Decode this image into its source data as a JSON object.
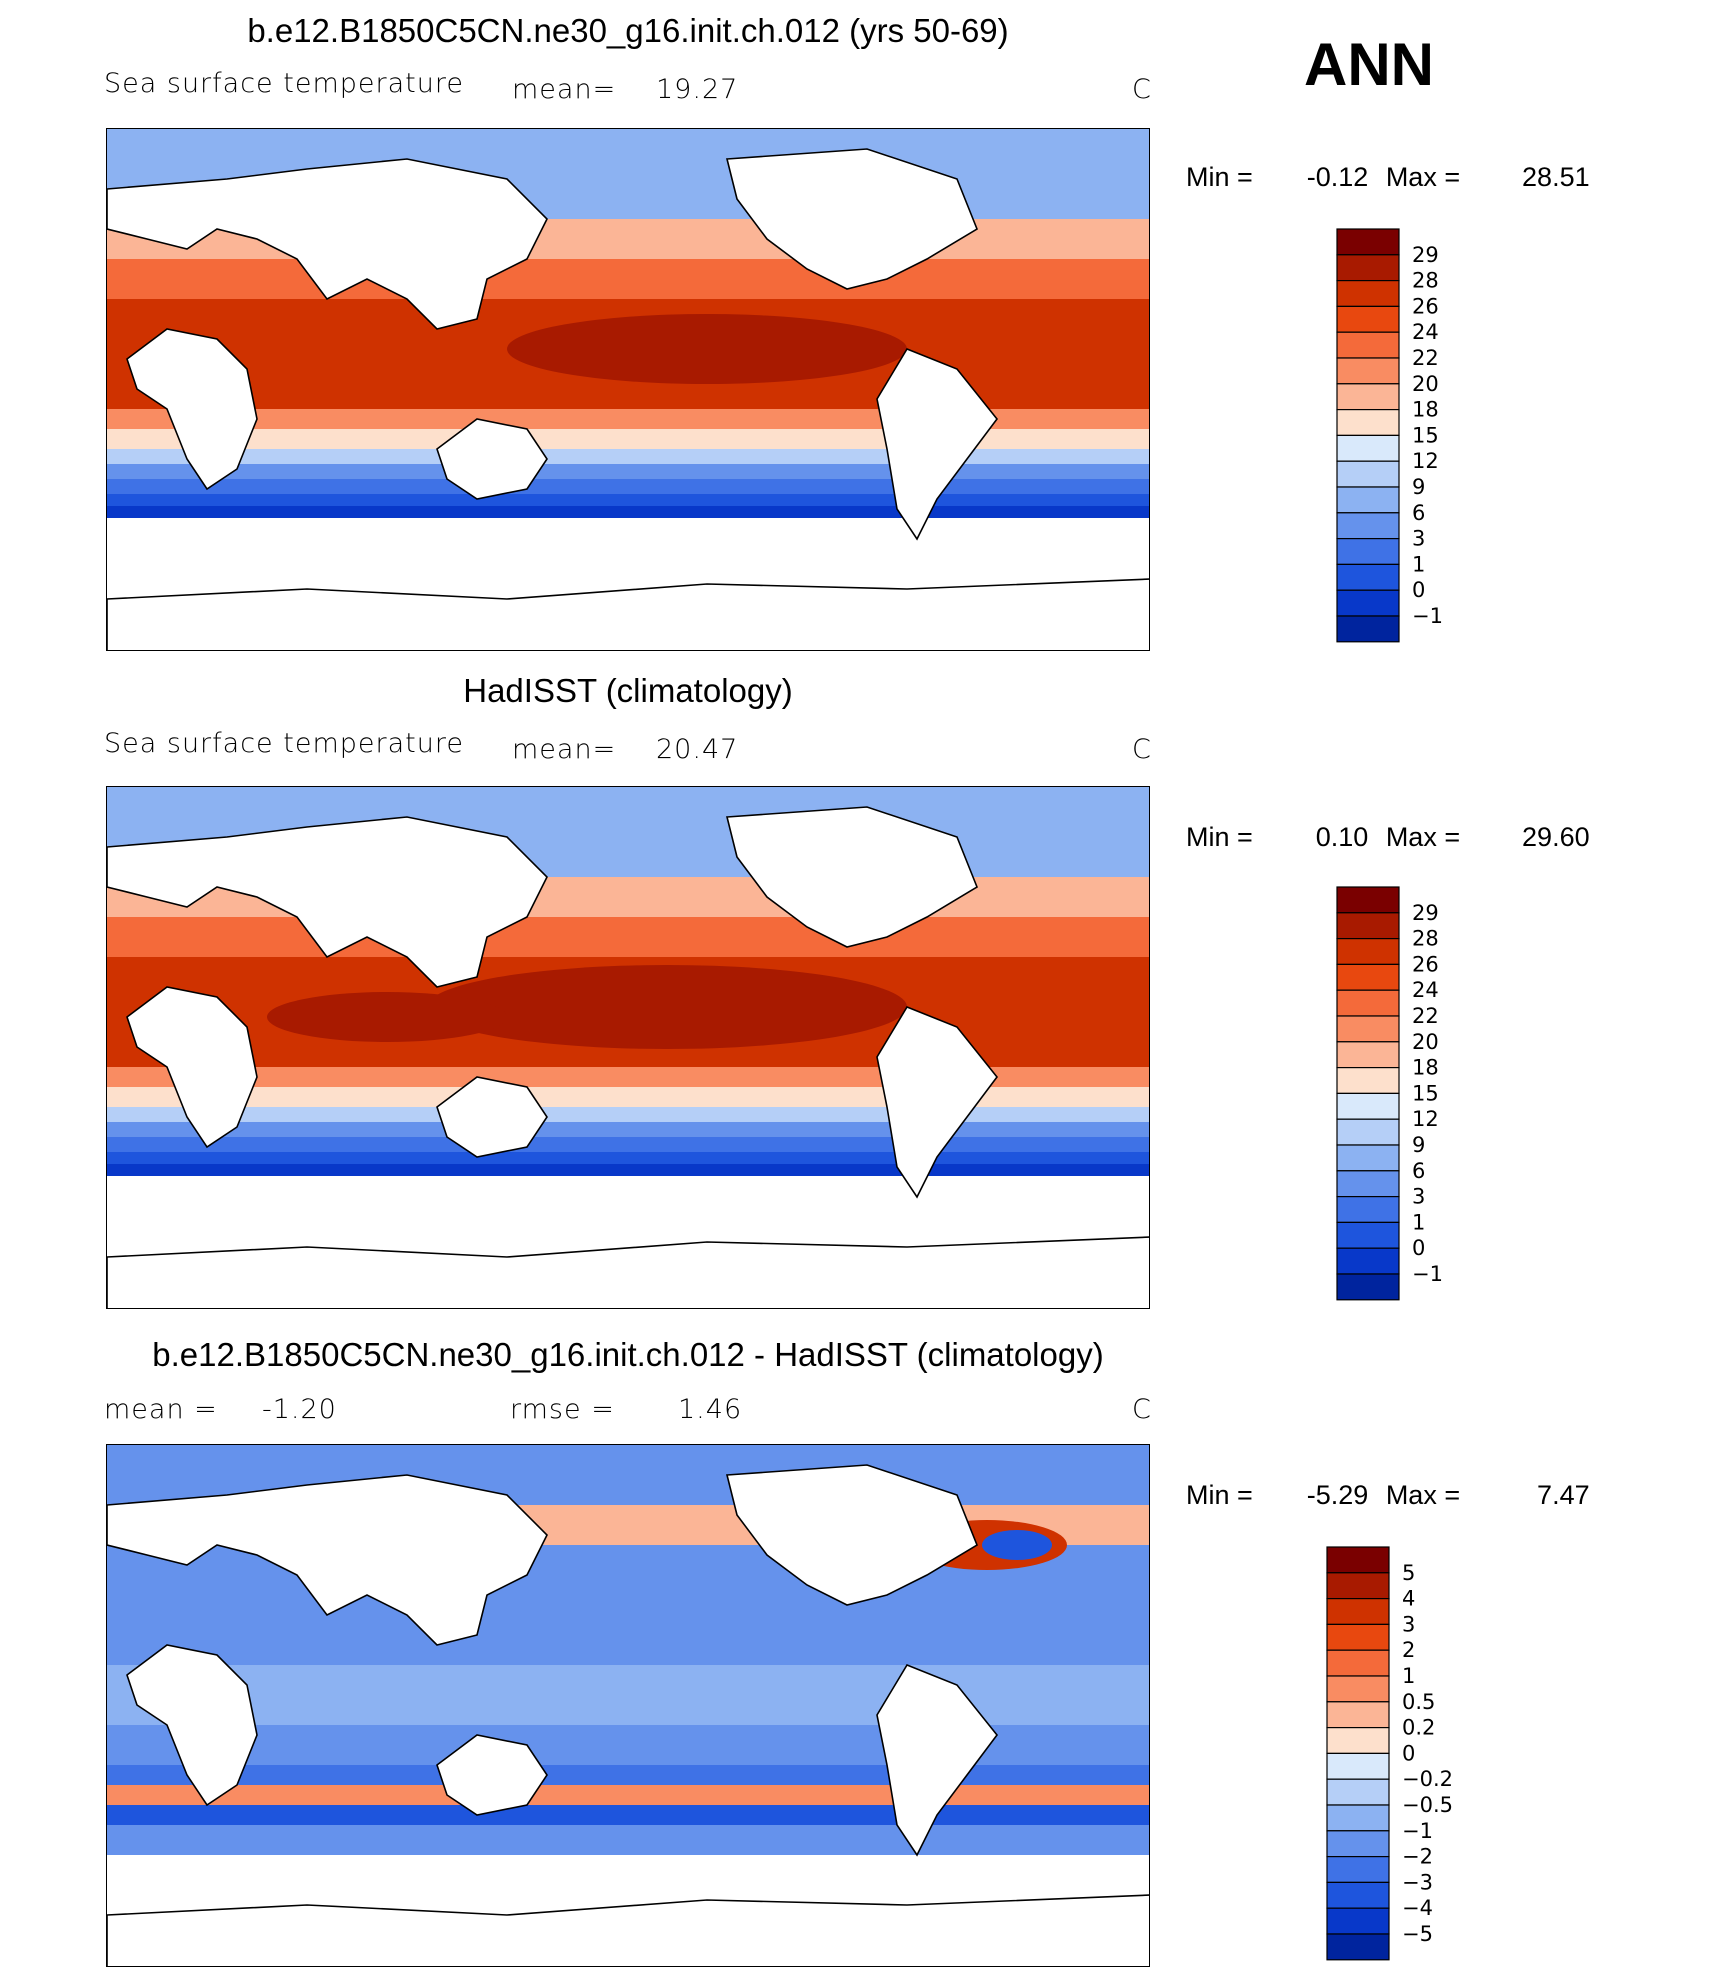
{
  "season": "ANN",
  "panels": [
    {
      "title": "b.e12.B1850C5CN.ne30_g16.init.ch.012 (yrs 50-69)",
      "left_label": "Sea surface temperature",
      "center_label": "mean=",
      "center_value": "19.27",
      "units": "C",
      "min_label": "Min =",
      "min_value": "-0.12",
      "max_label": "Max =",
      "max_value": "28.51",
      "colorbar": [
        "29",
        "28",
        "26",
        "24",
        "22",
        "20",
        "18",
        "15",
        "12",
        "9",
        "6",
        "3",
        "1",
        "0",
        "-1"
      ]
    },
    {
      "title": "HadISST (climatology)",
      "left_label": "Sea surface temperature",
      "center_label": "mean=",
      "center_value": "20.47",
      "units": "C",
      "min_label": "Min =",
      "min_value": "0.10",
      "max_label": "Max =",
      "max_value": "29.60",
      "colorbar": [
        "29",
        "28",
        "26",
        "24",
        "22",
        "20",
        "18",
        "15",
        "12",
        "9",
        "6",
        "3",
        "1",
        "0",
        "-1"
      ]
    },
    {
      "title": "b.e12.B1850C5CN.ne30_g16.init.ch.012 - HadISST (climatology)",
      "left_label": "mean =",
      "left_value": "-1.20",
      "center_label": "rmse =",
      "center_value": "1.46",
      "units": "C",
      "min_label": "Min =",
      "min_value": "-5.29",
      "max_label": "Max =",
      "max_value": "7.47",
      "colorbar": [
        "5",
        "4",
        "3",
        "2",
        "1",
        "0.5",
        "0.2",
        "0",
        "-0.2",
        "-0.5",
        "-1",
        "-2",
        "-3",
        "-4",
        "-5"
      ]
    }
  ],
  "colors": {
    "sst_scale": [
      "#7a0000",
      "#a81a00",
      "#cf3200",
      "#e8480f",
      "#f46a3a",
      "#f98c62",
      "#fbb596",
      "#fde0cc",
      "#d9e9fb",
      "#b5cff7",
      "#8cb2f2",
      "#6592ec",
      "#3f72e6",
      "#1e55dd",
      "#0838c9",
      "#00249e"
    ],
    "diff_scale": [
      "#7a0000",
      "#a81a00",
      "#cf3200",
      "#e8480f",
      "#f46a3a",
      "#f98c62",
      "#fbb596",
      "#fde0cc",
      "#d9e9fb",
      "#b5cff7",
      "#8cb2f2",
      "#6592ec",
      "#3f72e6",
      "#1e55dd",
      "#0838c9",
      "#00249e"
    ]
  },
  "chart_data": [
    {
      "type": "heatmap",
      "title": "b.e12.B1850C5CN.ne30_g16.init.ch.012 (yrs 50-69)",
      "variable": "Sea surface temperature",
      "units": "C",
      "mean": 19.27,
      "min": -0.12,
      "max": 28.51,
      "levels": [
        -1,
        0,
        1,
        3,
        6,
        9,
        12,
        15,
        18,
        20,
        22,
        24,
        26,
        28,
        29
      ]
    },
    {
      "type": "heatmap",
      "title": "HadISST (climatology)",
      "variable": "Sea surface temperature",
      "units": "C",
      "mean": 20.47,
      "min": 0.1,
      "max": 29.6,
      "levels": [
        -1,
        0,
        1,
        3,
        6,
        9,
        12,
        15,
        18,
        20,
        22,
        24,
        26,
        28,
        29
      ]
    },
    {
      "type": "heatmap",
      "title": "b.e12.B1850C5CN.ne30_g16.init.ch.012 - HadISST (climatology)",
      "units": "C",
      "mean": -1.2,
      "rmse": 1.46,
      "min": -5.29,
      "max": 7.47,
      "levels": [
        -5,
        -4,
        -3,
        -2,
        -1,
        -0.5,
        -0.2,
        0,
        0.2,
        0.5,
        1,
        2,
        3,
        4,
        5
      ]
    }
  ]
}
